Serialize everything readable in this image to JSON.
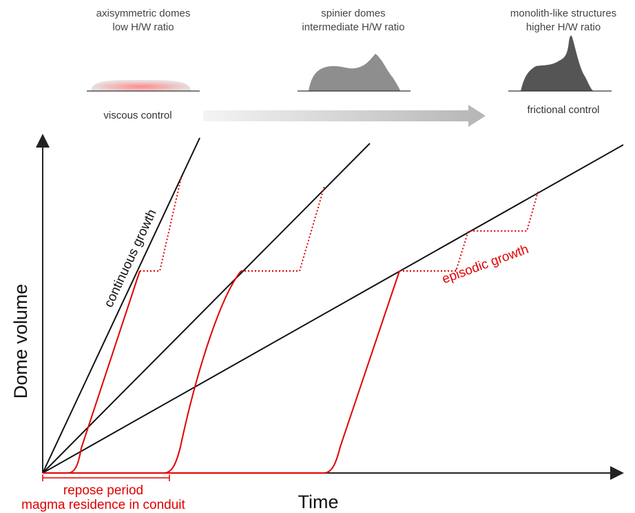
{
  "domes": [
    {
      "title": "axisymmetric domes",
      "subtitle": "low H/W ratio"
    },
    {
      "title": "spinier domes",
      "subtitle": "intermediate H/W ratio"
    },
    {
      "title": "monolith-like structures",
      "subtitle": "higher H/W ratio"
    }
  ],
  "controls": {
    "left": "viscous control",
    "right": "frictional control"
  },
  "annotations": {
    "continuous": "continuous growth",
    "episodic": "episodic growth"
  },
  "axes": {
    "y_label": "Dome volume",
    "x_label": "Time"
  },
  "repose": {
    "label": "repose period",
    "sublabel": "magma residence in conduit"
  }
}
